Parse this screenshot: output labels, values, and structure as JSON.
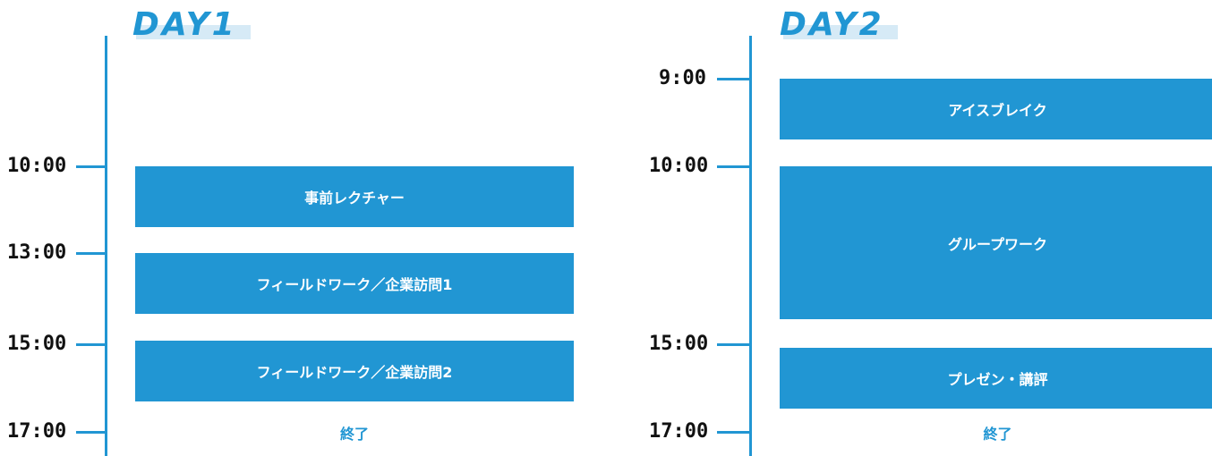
{
  "colors": {
    "accent": "#2196d3",
    "title_highlight": "#d6eaf6",
    "time_text": "#111111",
    "block_text": "#ffffff"
  },
  "day1": {
    "title": "DAY1",
    "times": [
      "10:00",
      "13:00",
      "15:00",
      "17:00"
    ],
    "blocks": [
      "事前レクチャー",
      "フィールドワーク／企業訪問1",
      "フィールドワーク／企業訪問2"
    ],
    "end": "終了"
  },
  "day2": {
    "title": "DAY2",
    "times": [
      "9:00",
      "10:00",
      "15:00",
      "17:00"
    ],
    "blocks": [
      "アイスブレイク",
      "グループワーク",
      "プレゼン・講評"
    ],
    "end": "終了"
  }
}
